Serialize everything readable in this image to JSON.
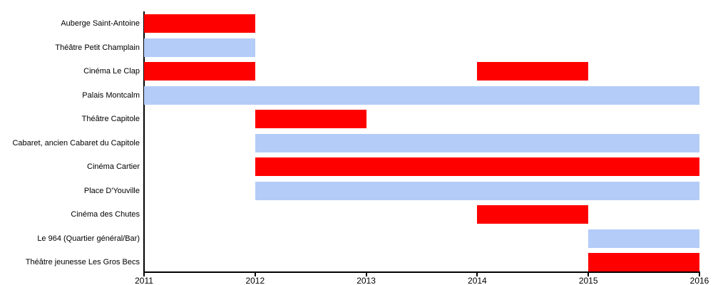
{
  "chart_data": {
    "type": "bar",
    "subtype": "gantt-timeline",
    "title": "",
    "xlabel": "",
    "ylabel": "",
    "grid": false,
    "legend": "none",
    "x_range": [
      2011,
      2016
    ],
    "x_ticks": [
      "2011",
      "2012",
      "2013",
      "2014",
      "2015",
      "2016"
    ],
    "colors": {
      "red": "#ff0000",
      "blue": "#b4ccf8",
      "axis": "#000000"
    },
    "rows": [
      {
        "label": "Auberge Saint-Antoine",
        "color": "red",
        "segments": [
          [
            2011,
            2012
          ]
        ]
      },
      {
        "label": "Théâtre Petit Champlain",
        "color": "blue",
        "segments": [
          [
            2011,
            2012
          ]
        ]
      },
      {
        "label": "Cinéma Le Clap",
        "color": "red",
        "segments": [
          [
            2011,
            2012
          ],
          [
            2014,
            2015
          ]
        ]
      },
      {
        "label": "Palais Montcalm",
        "color": "blue",
        "segments": [
          [
            2011,
            2016
          ]
        ]
      },
      {
        "label": "Théâtre Capitole",
        "color": "red",
        "segments": [
          [
            2012,
            2013
          ]
        ]
      },
      {
        "label": "Cabaret, ancien Cabaret du Capitole",
        "color": "blue",
        "segments": [
          [
            2012,
            2016
          ]
        ]
      },
      {
        "label": "Cinéma Cartier",
        "color": "red",
        "segments": [
          [
            2012,
            2016
          ]
        ]
      },
      {
        "label": "Place D'Youville",
        "color": "blue",
        "segments": [
          [
            2012,
            2016
          ]
        ]
      },
      {
        "label": "Cinéma des Chutes",
        "color": "red",
        "segments": [
          [
            2014,
            2015
          ]
        ]
      },
      {
        "label": "Le 964 (Quartier général/Bar)",
        "color": "blue",
        "segments": [
          [
            2015,
            2016
          ]
        ]
      },
      {
        "label": "Théâtre jeunesse Les Gros Becs",
        "color": "red",
        "segments": [
          [
            2015,
            2016
          ]
        ]
      }
    ]
  }
}
